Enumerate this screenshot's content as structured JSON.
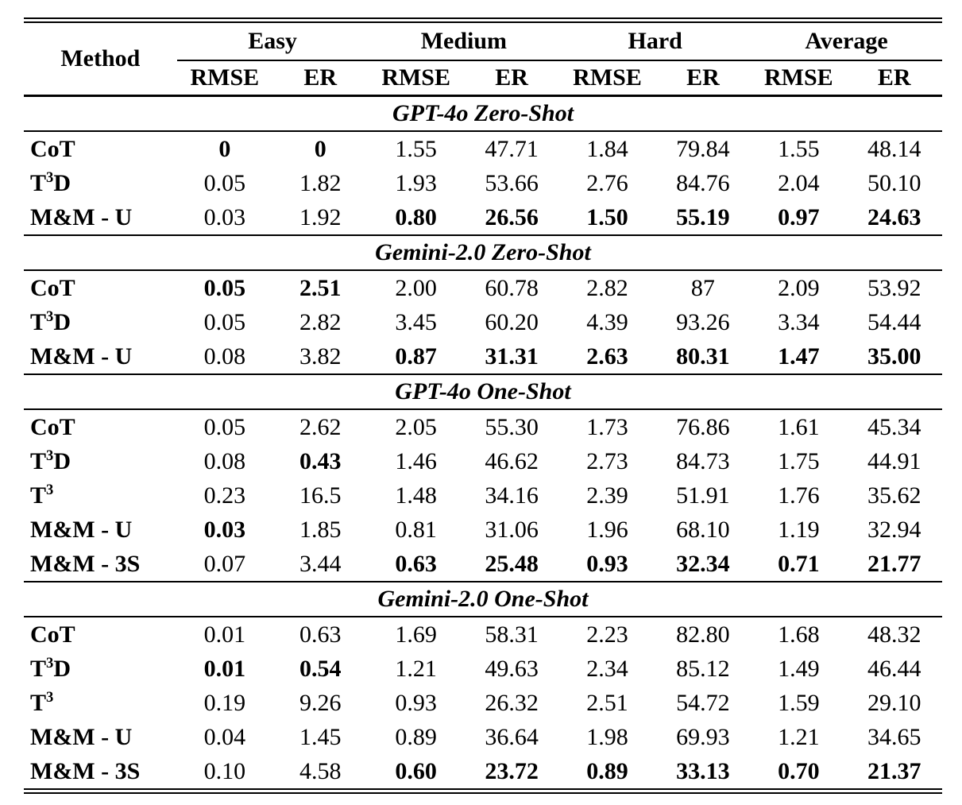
{
  "colors": {
    "text": "#000000",
    "background": "#ffffff"
  },
  "table": {
    "header": {
      "method": "Method",
      "groups": [
        "Easy",
        "Medium",
        "Hard",
        "Average"
      ],
      "metrics": [
        "RMSE",
        "ER"
      ]
    },
    "sections": [
      {
        "title": "GPT-4o Zero-Shot",
        "rows": [
          {
            "m_pre": "CoT",
            "m_sup": "",
            "m_post": "",
            "values": [
              "0",
              "0",
              "1.55",
              "47.71",
              "1.84",
              "79.84",
              "1.55",
              "48.14"
            ],
            "bold": [
              1,
              1,
              0,
              0,
              0,
              0,
              0,
              0
            ]
          },
          {
            "m_pre": "T",
            "m_sup": "3",
            "m_post": "D",
            "values": [
              "0.05",
              "1.82",
              "1.93",
              "53.66",
              "2.76",
              "84.76",
              "2.04",
              "50.10"
            ],
            "bold": [
              0,
              0,
              0,
              0,
              0,
              0,
              0,
              0
            ]
          },
          {
            "m_pre": "M&M - U",
            "m_sup": "",
            "m_post": "",
            "values": [
              "0.03",
              "1.92",
              "0.80",
              "26.56",
              "1.50",
              "55.19",
              "0.97",
              "24.63"
            ],
            "bold": [
              0,
              0,
              1,
              1,
              1,
              1,
              1,
              1
            ]
          }
        ]
      },
      {
        "title": "Gemini-2.0 Zero-Shot",
        "rows": [
          {
            "m_pre": "CoT",
            "m_sup": "",
            "m_post": "",
            "values": [
              "0.05",
              "2.51",
              "2.00",
              "60.78",
              "2.82",
              "87",
              "2.09",
              "53.92"
            ],
            "bold": [
              1,
              1,
              0,
              0,
              0,
              0,
              0,
              0
            ]
          },
          {
            "m_pre": "T",
            "m_sup": "3",
            "m_post": "D",
            "values": [
              "0.05",
              "2.82",
              "3.45",
              "60.20",
              "4.39",
              "93.26",
              "3.34",
              "54.44"
            ],
            "bold": [
              0,
              0,
              0,
              0,
              0,
              0,
              0,
              0
            ]
          },
          {
            "m_pre": "M&M - U",
            "m_sup": "",
            "m_post": "",
            "values": [
              "0.08",
              "3.82",
              "0.87",
              "31.31",
              "2.63",
              "80.31",
              "1.47",
              "35.00"
            ],
            "bold": [
              0,
              0,
              1,
              1,
              1,
              1,
              1,
              1
            ]
          }
        ]
      },
      {
        "title": "GPT-4o One-Shot",
        "rows": [
          {
            "m_pre": "CoT",
            "m_sup": "",
            "m_post": "",
            "values": [
              "0.05",
              "2.62",
              "2.05",
              "55.30",
              "1.73",
              "76.86",
              "1.61",
              "45.34"
            ],
            "bold": [
              0,
              0,
              0,
              0,
              0,
              0,
              0,
              0
            ]
          },
          {
            "m_pre": "T",
            "m_sup": "3",
            "m_post": "D",
            "values": [
              "0.08",
              "0.43",
              "1.46",
              "46.62",
              "2.73",
              "84.73",
              "1.75",
              "44.91"
            ],
            "bold": [
              0,
              1,
              0,
              0,
              0,
              0,
              0,
              0
            ]
          },
          {
            "m_pre": "T",
            "m_sup": "3",
            "m_post": "",
            "values": [
              "0.23",
              "16.5",
              "1.48",
              "34.16",
              "2.39",
              "51.91",
              "1.76",
              "35.62"
            ],
            "bold": [
              0,
              0,
              0,
              0,
              0,
              0,
              0,
              0
            ]
          },
          {
            "m_pre": "M&M - U",
            "m_sup": "",
            "m_post": "",
            "values": [
              "0.03",
              "1.85",
              "0.81",
              "31.06",
              "1.96",
              "68.10",
              "1.19",
              "32.94"
            ],
            "bold": [
              1,
              0,
              0,
              0,
              0,
              0,
              0,
              0
            ]
          },
          {
            "m_pre": "M&M - 3S",
            "m_sup": "",
            "m_post": "",
            "values": [
              "0.07",
              "3.44",
              "0.63",
              "25.48",
              "0.93",
              "32.34",
              "0.71",
              "21.77"
            ],
            "bold": [
              0,
              0,
              1,
              1,
              1,
              1,
              1,
              1
            ]
          }
        ]
      },
      {
        "title": "Gemini-2.0 One-Shot",
        "rows": [
          {
            "m_pre": "CoT",
            "m_sup": "",
            "m_post": "",
            "values": [
              "0.01",
              "0.63",
              "1.69",
              "58.31",
              "2.23",
              "82.80",
              "1.68",
              "48.32"
            ],
            "bold": [
              0,
              0,
              0,
              0,
              0,
              0,
              0,
              0
            ]
          },
          {
            "m_pre": "T",
            "m_sup": "3",
            "m_post": "D",
            "values": [
              "0.01",
              "0.54",
              "1.21",
              "49.63",
              "2.34",
              "85.12",
              "1.49",
              "46.44"
            ],
            "bold": [
              1,
              1,
              0,
              0,
              0,
              0,
              0,
              0
            ]
          },
          {
            "m_pre": "T",
            "m_sup": "3",
            "m_post": "",
            "values": [
              "0.19",
              "9.26",
              "0.93",
              "26.32",
              "2.51",
              "54.72",
              "1.59",
              "29.10"
            ],
            "bold": [
              0,
              0,
              0,
              0,
              0,
              0,
              0,
              0
            ]
          },
          {
            "m_pre": "M&M - U",
            "m_sup": "",
            "m_post": "",
            "values": [
              "0.04",
              "1.45",
              "0.89",
              "36.64",
              "1.98",
              "69.93",
              "1.21",
              "34.65"
            ],
            "bold": [
              0,
              0,
              0,
              0,
              0,
              0,
              0,
              0
            ]
          },
          {
            "m_pre": "M&M - 3S",
            "m_sup": "",
            "m_post": "",
            "values": [
              "0.10",
              "4.58",
              "0.60",
              "23.72",
              "0.89",
              "33.13",
              "0.70",
              "21.37"
            ],
            "bold": [
              0,
              0,
              1,
              1,
              1,
              1,
              1,
              1
            ]
          }
        ]
      }
    ]
  }
}
